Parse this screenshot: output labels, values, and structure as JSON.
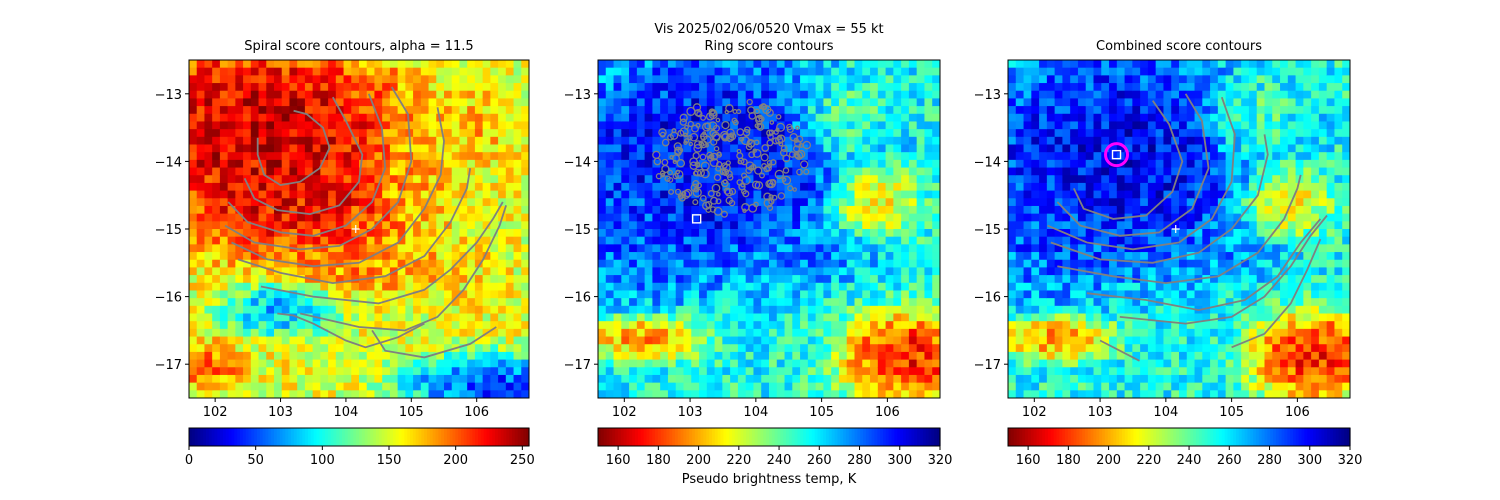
{
  "figure": {
    "suptitle": "Vis  2025/02/06/0520    Vmax = 55 kt",
    "colorbar_label": "Pseudo brightness temp, K"
  },
  "chart_data": [
    {
      "type": "heatmap",
      "title": "Spiral score contours, alpha = 11.5",
      "xlim": [
        101.6,
        106.8
      ],
      "ylim": [
        -17.5,
        -12.5
      ],
      "xticks": [
        102,
        103,
        104,
        105,
        106
      ],
      "yticks": [
        -13,
        -14,
        -15,
        -16,
        -17
      ],
      "colormap": "jet",
      "colorbar": {
        "min": 0,
        "max": 255,
        "ticks": [
          0,
          50,
          100,
          150,
          200,
          250
        ]
      },
      "contour_color": "#808080",
      "contours": [
        [
          [
            102.65,
            -13.65
          ],
          [
            102.65,
            -13.9
          ],
          [
            102.75,
            -14.2
          ],
          [
            103.0,
            -14.35
          ],
          [
            103.3,
            -14.3
          ],
          [
            103.6,
            -14.1
          ],
          [
            103.75,
            -13.8
          ],
          [
            103.65,
            -13.5
          ],
          [
            103.4,
            -13.3
          ],
          [
            103.2,
            -13.25
          ]
        ],
        [
          [
            102.45,
            -14.25
          ],
          [
            102.6,
            -14.55
          ],
          [
            102.95,
            -14.72
          ],
          [
            103.45,
            -14.78
          ],
          [
            103.9,
            -14.65
          ],
          [
            104.2,
            -14.3
          ],
          [
            104.25,
            -13.9
          ],
          [
            104.0,
            -13.4
          ],
          [
            103.8,
            -13.05
          ]
        ],
        [
          [
            102.2,
            -14.6
          ],
          [
            102.5,
            -14.9
          ],
          [
            103.0,
            -15.05
          ],
          [
            103.5,
            -15.1
          ],
          [
            104.0,
            -14.95
          ],
          [
            104.4,
            -14.6
          ],
          [
            104.6,
            -14.1
          ],
          [
            104.55,
            -13.5
          ],
          [
            104.35,
            -13.0
          ]
        ],
        [
          [
            102.15,
            -14.95
          ],
          [
            102.6,
            -15.2
          ],
          [
            103.3,
            -15.3
          ],
          [
            103.9,
            -15.25
          ],
          [
            104.4,
            -15.0
          ],
          [
            104.8,
            -14.6
          ],
          [
            105.0,
            -14.0
          ],
          [
            104.95,
            -13.3
          ],
          [
            104.7,
            -12.9
          ]
        ],
        [
          [
            102.25,
            -15.2
          ],
          [
            102.8,
            -15.45
          ],
          [
            103.5,
            -15.55
          ],
          [
            104.2,
            -15.5
          ],
          [
            104.8,
            -15.2
          ],
          [
            105.2,
            -14.7
          ],
          [
            105.45,
            -14.2
          ],
          [
            105.5,
            -13.7
          ],
          [
            105.4,
            -13.2
          ]
        ],
        [
          [
            102.35,
            -15.45
          ],
          [
            103.0,
            -15.65
          ],
          [
            103.8,
            -15.8
          ],
          [
            104.6,
            -15.7
          ],
          [
            105.2,
            -15.4
          ],
          [
            105.6,
            -14.9
          ],
          [
            105.85,
            -14.4
          ],
          [
            105.9,
            -14.1
          ]
        ],
        [
          [
            102.7,
            -15.85
          ],
          [
            103.5,
            -16.0
          ],
          [
            104.5,
            -16.1
          ],
          [
            105.2,
            -15.9
          ],
          [
            105.6,
            -15.6
          ],
          [
            106.0,
            -15.2
          ],
          [
            106.25,
            -14.85
          ],
          [
            106.4,
            -14.6
          ]
        ],
        [
          [
            103.3,
            -16.25
          ],
          [
            104.2,
            -16.45
          ],
          [
            104.9,
            -16.5
          ],
          [
            105.4,
            -16.3
          ],
          [
            105.8,
            -15.9
          ],
          [
            106.1,
            -15.45
          ],
          [
            106.35,
            -14.95
          ],
          [
            106.45,
            -14.65
          ]
        ],
        [
          [
            102.95,
            -16.25
          ],
          [
            103.2,
            -16.28
          ],
          [
            103.5,
            -16.4
          ],
          [
            104.0,
            -16.65
          ],
          [
            104.3,
            -16.75
          ],
          [
            104.8,
            -16.6
          ],
          [
            105.2,
            -16.4
          ]
        ],
        [
          [
            104.4,
            -16.5
          ],
          [
            104.6,
            -16.8
          ],
          [
            105.2,
            -16.9
          ],
          [
            105.9,
            -16.7
          ],
          [
            106.3,
            -16.45
          ]
        ]
      ],
      "markers": [
        {
          "type": "plus",
          "x": 104.15,
          "y": -15.0,
          "color": "#ffffff"
        }
      ],
      "blobs": [
        {
          "x": 102.8,
          "y": -13.6,
          "rx": 1.9,
          "ry": 1.25,
          "t": 1.0
        },
        {
          "x": 103.2,
          "y": -14.7,
          "rx": 1.5,
          "ry": 0.7,
          "t": 0.9
        },
        {
          "x": 105.1,
          "y": -14.2,
          "rx": 0.6,
          "ry": 0.7,
          "t": 0.7
        },
        {
          "x": 106.0,
          "y": -13.5,
          "rx": 0.6,
          "ry": 0.5,
          "t": 0.7
        },
        {
          "x": 104.3,
          "y": -15.5,
          "rx": 1.2,
          "ry": 0.45,
          "t": 0.75
        },
        {
          "x": 103.0,
          "y": -16.2,
          "rx": 0.8,
          "ry": 0.35,
          "t": 0.25
        },
        {
          "x": 106.2,
          "y": -17.3,
          "rx": 1.2,
          "ry": 0.4,
          "t": 0.1
        },
        {
          "x": 105.8,
          "y": -15.6,
          "rx": 0.5,
          "ry": 0.5,
          "t": 0.65
        },
        {
          "x": 101.9,
          "y": -17.0,
          "rx": 0.5,
          "ry": 0.3,
          "t": 0.8
        }
      ],
      "bg_level": 0.6
    },
    {
      "type": "heatmap",
      "title": "Ring score contours",
      "xlim": [
        101.6,
        106.8
      ],
      "ylim": [
        -17.5,
        -12.5
      ],
      "xticks": [
        102,
        103,
        104,
        105,
        106
      ],
      "yticks": [
        -13,
        -14,
        -15,
        -16,
        -17
      ],
      "colormap": "jet_r",
      "colorbar": {
        "min": 150,
        "max": 320,
        "ticks": [
          160,
          180,
          200,
          220,
          240,
          260,
          280,
          300,
          320
        ]
      },
      "contour_color": "#808080",
      "contours": [],
      "hatched_region": {
        "x": 103.65,
        "y": -13.95,
        "rx": 1.2,
        "ry": 0.85,
        "color": "#808080"
      },
      "markers": [
        {
          "type": "square",
          "x": 103.1,
          "y": -14.85,
          "color": "#ffffff"
        }
      ],
      "blobs": [
        {
          "x": 103.2,
          "y": -14.0,
          "rx": 2.1,
          "ry": 1.55,
          "t": 0.05
        },
        {
          "x": 102.2,
          "y": -15.0,
          "rx": 0.9,
          "ry": 1.0,
          "t": 0.2
        },
        {
          "x": 104.8,
          "y": -15.4,
          "rx": 1.0,
          "ry": 0.35,
          "t": 0.25
        },
        {
          "x": 105.3,
          "y": -13.4,
          "rx": 0.6,
          "ry": 0.6,
          "t": 0.5
        },
        {
          "x": 106.3,
          "y": -16.9,
          "rx": 0.9,
          "ry": 0.6,
          "t": 0.95
        },
        {
          "x": 102.3,
          "y": -16.6,
          "rx": 0.8,
          "ry": 0.3,
          "t": 0.8
        },
        {
          "x": 105.8,
          "y": -14.6,
          "rx": 0.6,
          "ry": 0.5,
          "t": 0.7
        }
      ],
      "bg_level": 0.4
    },
    {
      "type": "heatmap",
      "title": "Combined score contours",
      "xlim": [
        101.6,
        106.8
      ],
      "ylim": [
        -17.5,
        -12.5
      ],
      "xticks": [
        102,
        103,
        104,
        105,
        106
      ],
      "yticks": [
        -13,
        -14,
        -15,
        -16,
        -17
      ],
      "colormap": "jet_r",
      "colorbar": {
        "min": 150,
        "max": 320,
        "ticks": [
          160,
          180,
          200,
          220,
          240,
          260,
          280,
          300,
          320
        ]
      },
      "contour_color": "#808080",
      "contours": [
        [
          [
            102.6,
            -14.4
          ],
          [
            102.75,
            -14.7
          ],
          [
            103.2,
            -14.85
          ],
          [
            103.7,
            -14.8
          ],
          [
            104.1,
            -14.45
          ],
          [
            104.25,
            -14.0
          ],
          [
            104.05,
            -13.45
          ],
          [
            103.8,
            -13.1
          ]
        ],
        [
          [
            102.35,
            -14.6
          ],
          [
            102.7,
            -14.95
          ],
          [
            103.3,
            -15.1
          ],
          [
            103.9,
            -15.05
          ],
          [
            104.4,
            -14.7
          ],
          [
            104.65,
            -14.1
          ],
          [
            104.55,
            -13.4
          ],
          [
            104.3,
            -13.0
          ]
        ],
        [
          [
            102.2,
            -14.95
          ],
          [
            102.8,
            -15.2
          ],
          [
            103.5,
            -15.3
          ],
          [
            104.2,
            -15.2
          ],
          [
            104.7,
            -14.85
          ],
          [
            105.0,
            -14.3
          ],
          [
            105.05,
            -13.6
          ],
          [
            104.85,
            -13.05
          ]
        ],
        [
          [
            102.25,
            -15.2
          ],
          [
            103.0,
            -15.45
          ],
          [
            103.8,
            -15.5
          ],
          [
            104.5,
            -15.35
          ],
          [
            105.0,
            -15.0
          ],
          [
            105.4,
            -14.5
          ],
          [
            105.55,
            -13.9
          ],
          [
            105.5,
            -13.6
          ]
        ],
        [
          [
            102.35,
            -15.55
          ],
          [
            103.2,
            -15.7
          ],
          [
            104.0,
            -15.8
          ],
          [
            104.8,
            -15.7
          ],
          [
            105.4,
            -15.35
          ],
          [
            105.8,
            -14.85
          ],
          [
            106.0,
            -14.4
          ],
          [
            106.05,
            -14.2
          ]
        ],
        [
          [
            102.8,
            -15.95
          ],
          [
            103.7,
            -16.05
          ],
          [
            104.5,
            -16.2
          ],
          [
            105.2,
            -16.05
          ],
          [
            105.7,
            -15.7
          ],
          [
            106.05,
            -15.2
          ],
          [
            106.35,
            -14.85
          ]
        ],
        [
          [
            103.3,
            -16.3
          ],
          [
            104.3,
            -16.4
          ],
          [
            105.0,
            -16.3
          ],
          [
            105.5,
            -16.0
          ],
          [
            105.9,
            -15.55
          ],
          [
            106.2,
            -15.1
          ],
          [
            106.45,
            -14.8
          ]
        ],
        [
          [
            105.0,
            -16.75
          ],
          [
            105.5,
            -16.55
          ],
          [
            105.9,
            -16.1
          ],
          [
            106.15,
            -15.6
          ],
          [
            106.35,
            -15.15
          ]
        ],
        [
          [
            103.0,
            -16.65
          ],
          [
            103.6,
            -16.95
          ]
        ]
      ],
      "markers": [
        {
          "type": "plus",
          "x": 104.15,
          "y": -15.0,
          "color": "#ffffff"
        },
        {
          "type": "ring",
          "x": 103.25,
          "y": -13.9,
          "color": "#ff00ff"
        },
        {
          "type": "square",
          "x": 103.25,
          "y": -13.9,
          "color": "#ffffff"
        }
      ],
      "blobs": [
        {
          "x": 103.2,
          "y": -14.0,
          "rx": 2.1,
          "ry": 1.55,
          "t": 0.05
        },
        {
          "x": 102.2,
          "y": -15.0,
          "rx": 0.9,
          "ry": 1.0,
          "t": 0.2
        },
        {
          "x": 104.8,
          "y": -15.4,
          "rx": 1.0,
          "ry": 0.35,
          "t": 0.25
        },
        {
          "x": 105.3,
          "y": -13.4,
          "rx": 0.6,
          "ry": 0.6,
          "t": 0.5
        },
        {
          "x": 106.3,
          "y": -16.9,
          "rx": 0.9,
          "ry": 0.6,
          "t": 0.95
        },
        {
          "x": 102.3,
          "y": -16.6,
          "rx": 0.8,
          "ry": 0.3,
          "t": 0.8
        },
        {
          "x": 105.8,
          "y": -14.6,
          "rx": 0.6,
          "ry": 0.5,
          "t": 0.7
        }
      ],
      "bg_level": 0.4
    }
  ]
}
